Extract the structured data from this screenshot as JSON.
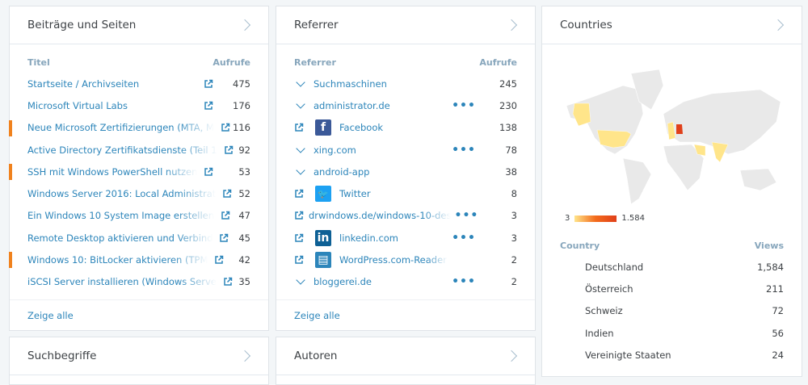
{
  "posts": {
    "title": "Beiträge und Seiten",
    "col_title": "Titel",
    "col_views": "Aufrufe",
    "footer": "Zeige alle",
    "items": [
      {
        "label": "Startseite / Archivseiten",
        "views": "475",
        "marked": false
      },
      {
        "label": "Microsoft Virtual Labs",
        "views": "176",
        "marked": false
      },
      {
        "label": "Neue Microsoft Zertifizierungen (MTA, M",
        "views": "116",
        "marked": true
      },
      {
        "label": "Active Directory Zertifikatsdienste (Teil 1",
        "views": "92",
        "marked": false
      },
      {
        "label": "SSH mit Windows PowerShell nutzen",
        "views": "53",
        "marked": true
      },
      {
        "label": "Windows Server 2016: Local Administrat",
        "views": "52",
        "marked": false
      },
      {
        "label": "Ein Windows 10 System Image erstellen",
        "views": "47",
        "marked": false
      },
      {
        "label": "Remote Desktop aktivieren und Verbind",
        "views": "45",
        "marked": false
      },
      {
        "label": "Windows 10: BitLocker aktivieren (TPM",
        "views": "42",
        "marked": true
      },
      {
        "label": "iSCSI Server installieren (Windows Serve",
        "views": "35",
        "marked": false
      }
    ]
  },
  "referrers": {
    "title": "Referrer",
    "col_title": "Referrer",
    "col_views": "Aufrufe",
    "footer": "Zeige alle",
    "items": [
      {
        "label": "Suchmaschinen",
        "views": "245",
        "lead": "chevron",
        "icon": "",
        "dots": false
      },
      {
        "label": "administrator.de",
        "views": "230",
        "lead": "chevron",
        "icon": "",
        "dots": true
      },
      {
        "label": "Facebook",
        "views": "138",
        "lead": "external",
        "icon": "facebook",
        "dots": false
      },
      {
        "label": "xing.com",
        "views": "78",
        "lead": "chevron",
        "icon": "",
        "dots": true
      },
      {
        "label": "android-app",
        "views": "38",
        "lead": "chevron",
        "icon": "",
        "dots": false
      },
      {
        "label": "Twitter",
        "views": "8",
        "lead": "external",
        "icon": "twitter",
        "dots": false
      },
      {
        "label": "drwindows.de/windows-10-des",
        "views": "3",
        "lead": "external",
        "icon": "",
        "dots": true
      },
      {
        "label": "linkedin.com",
        "views": "3",
        "lead": "external",
        "icon": "linkedin",
        "dots": true
      },
      {
        "label": "WordPress.com-Reader",
        "views": "2",
        "lead": "external",
        "icon": "wordpress-reader",
        "dots": false
      },
      {
        "label": "bloggerei.de",
        "views": "2",
        "lead": "chevron",
        "icon": "",
        "dots": true
      }
    ]
  },
  "countries": {
    "title": "Countries",
    "legend_min": "3",
    "legend_max": "1.584",
    "col_title": "Country",
    "col_views": "Views",
    "items": [
      {
        "label": "Deutschland",
        "views": "1,584",
        "flag": "de"
      },
      {
        "label": "Österreich",
        "views": "211",
        "flag": "at"
      },
      {
        "label": "Schweiz",
        "views": "72",
        "flag": "ch"
      },
      {
        "label": "Indien",
        "views": "56",
        "flag": "in"
      },
      {
        "label": "Vereinigte Staaten",
        "views": "24",
        "flag": "us"
      }
    ]
  },
  "search_terms": {
    "title": "Suchbegriffe"
  },
  "authors": {
    "title": "Autoren"
  },
  "colors": {
    "link": "#2c85ba",
    "marker": "#f0821e",
    "map_high": "#e0401a",
    "map_low": "#ffe58a"
  }
}
